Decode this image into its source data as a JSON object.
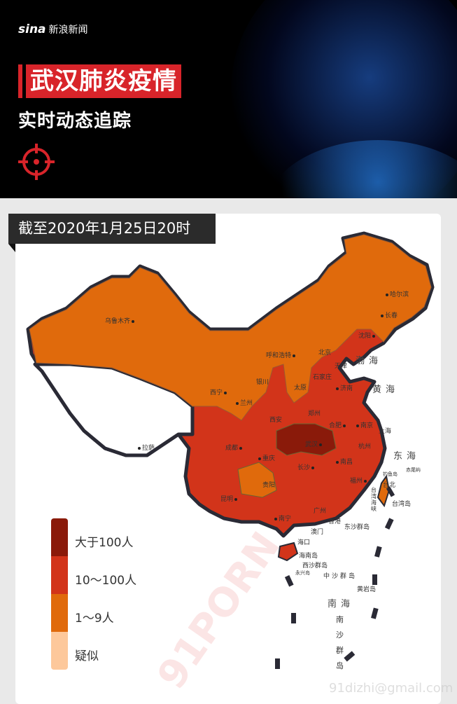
{
  "header": {
    "logo_brand": "sina",
    "logo_text": "新浪新闻",
    "title": "武汉肺炎疫情",
    "subtitle": "实时动态追踪",
    "target_icon": "crosshair-icon"
  },
  "date_tag": "截至2020年1月25日20时",
  "legend": [
    {
      "label": "大于100人",
      "color": "#8a1a0a"
    },
    {
      "label": "10～100人",
      "color": "#d2341a"
    },
    {
      "label": "1～9人",
      "color": "#e06a0c"
    },
    {
      "label": "疑似",
      "color": "#fdc89b"
    }
  ],
  "cities": [
    "乌鲁木齐",
    "哈尔滨",
    "长春",
    "沈阳",
    "呼和浩特",
    "北京",
    "天津",
    "石家庄",
    "银川",
    "太原",
    "济南",
    "西宁",
    "兰州",
    "西安",
    "郑州",
    "合肥",
    "南京",
    "上海",
    "拉萨",
    "成都",
    "武汉",
    "杭州",
    "重庆",
    "长沙",
    "南昌",
    "贵阳",
    "福州",
    "台北",
    "昆明",
    "南宁",
    "广州",
    "香港",
    "澳门",
    "海口",
    "海南岛",
    "台湾岛",
    "钓鱼岛",
    "赤尾屿",
    "东沙群岛",
    "西沙群岛",
    "永兴岛",
    "中沙群岛",
    "黄岩岛"
  ],
  "seas": [
    "渤海",
    "黄海",
    "东海",
    "台湾海峡",
    "南海",
    "南沙群岛"
  ],
  "watermark": [
    "91PORN",
    "91dizhi@gmail.com"
  ]
}
